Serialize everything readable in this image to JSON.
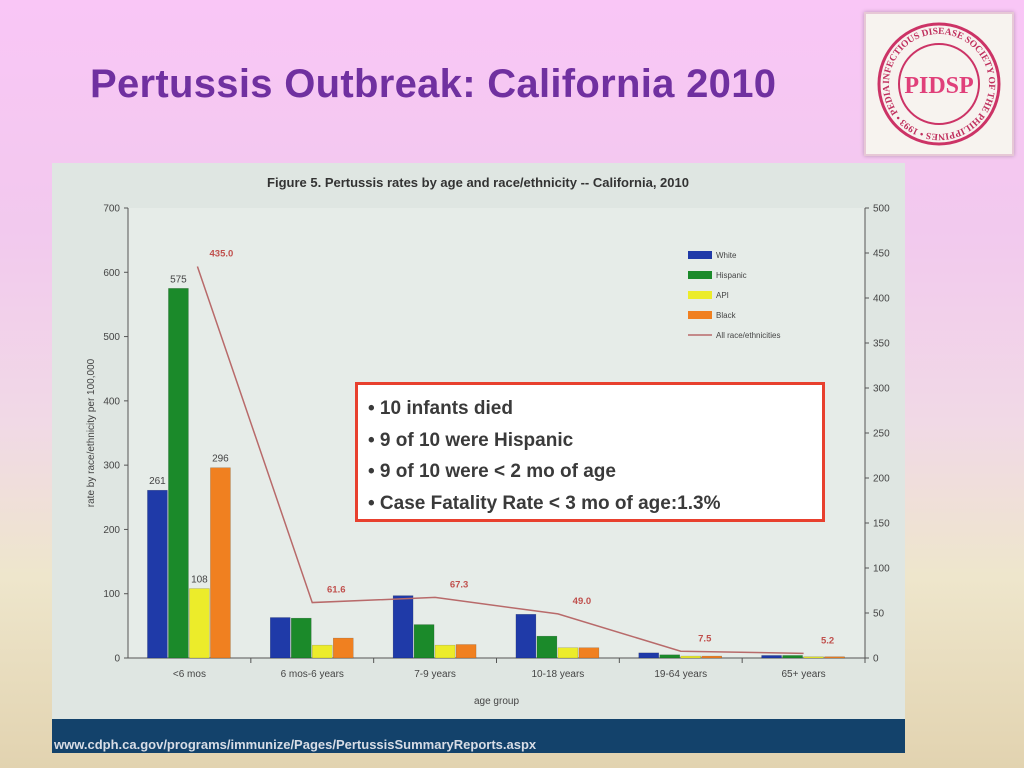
{
  "slide": {
    "title": "Pertussis Outbreak: California 2010",
    "footer_url": "www.cdph.ca.gov/programs/immunize/Pages/PertussisSummaryReports.aspx"
  },
  "logo": {
    "ring_text": "INFECTIOUS DISEASE SOCIETY OF THE PHILIPPINES • 1993 • PEDIATRIC",
    "center_text": "PIDSP"
  },
  "callout": {
    "bullets": [
      "• 10 infants died",
      "• 9 of 10 were Hispanic",
      "• 9 of 10 were < 2 mo of age",
      "• Case Fatality Rate < 3 mo of age:1.3%"
    ]
  },
  "chart_data": {
    "type": "bar",
    "title": "Figure 5. Pertussis rates by age and race/ethnicity -- California, 2010",
    "xlabel": "age group",
    "ylabel": "rate by race/ethnicity per 100,000",
    "ylim": [
      0,
      700
    ],
    "y_ticks": [
      "0",
      "100",
      "200",
      "300",
      "400",
      "500",
      "600",
      "700"
    ],
    "y2lim": [
      0,
      500
    ],
    "y2_ticks": [
      "0",
      "50",
      "100",
      "150",
      "200",
      "250",
      "300",
      "350",
      "400",
      "450",
      "500"
    ],
    "categories": [
      "<6 mos",
      "6 mos-6 years",
      "7-9 years",
      "10-18 years",
      "19-64 years",
      "65+ years"
    ],
    "legend_position": "top-right",
    "series": [
      {
        "name": "White",
        "color": "#1f3aa8",
        "values": [
          261,
          63,
          97,
          68,
          8,
          4
        ],
        "labels": [
          "261",
          "",
          "",
          "",
          "",
          ""
        ]
      },
      {
        "name": "Hispanic",
        "color": "#1b8a2a",
        "values": [
          575,
          62,
          52,
          34,
          5,
          4
        ],
        "labels": [
          "575",
          "",
          "",
          "",
          "",
          ""
        ]
      },
      {
        "name": "API",
        "color": "#ecec2a",
        "values": [
          108,
          20,
          20,
          16,
          3,
          2
        ],
        "labels": [
          "108",
          "",
          "",
          "",
          "",
          ""
        ]
      },
      {
        "name": "Black",
        "color": "#f08020",
        "values": [
          296,
          31,
          21,
          16,
          3,
          2
        ],
        "labels": [
          "296",
          "",
          "",
          "",
          "",
          ""
        ]
      }
    ],
    "line_series": {
      "name": "All race/ethnicities",
      "color": "#b86a6a",
      "axis": "right",
      "values": [
        435.0,
        61.6,
        67.3,
        49.0,
        7.5,
        5.2
      ],
      "labels": [
        "435.0",
        "61.6",
        "67.3",
        "49.0",
        "7.5",
        "5.2"
      ]
    }
  }
}
